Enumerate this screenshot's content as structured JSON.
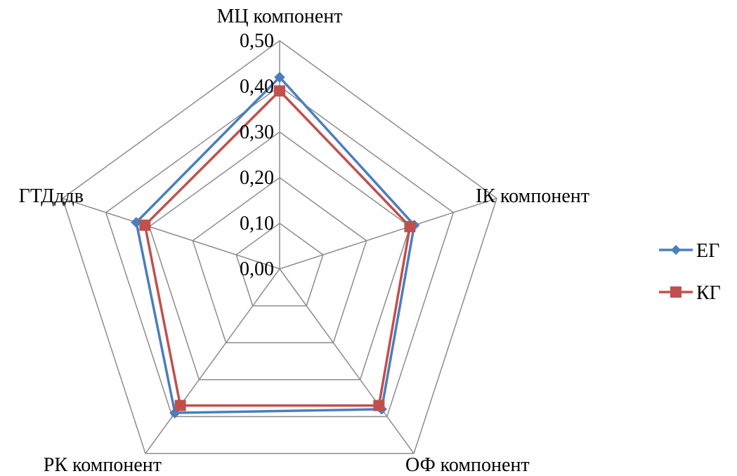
{
  "chart_data": {
    "type": "radar",
    "categories": [
      "МЦ компонент",
      "ІК компонент",
      "ОФ компонент",
      "РК компонент",
      "ГТДддв"
    ],
    "tick_labels": [
      "0,00",
      "0,10",
      "0,20",
      "0,30",
      "0,40",
      "0,50"
    ],
    "ticks": [
      0,
      0.1,
      0.2,
      0.3,
      0.4,
      0.5
    ],
    "rmax": 0.5,
    "grid": true,
    "legend_position": "right",
    "series": [
      {
        "name": "ЕГ",
        "values": [
          0.42,
          0.31,
          0.38,
          0.39,
          0.33
        ],
        "color": "#4a7ebf",
        "marker": "diamond"
      },
      {
        "name": "КГ",
        "values": [
          0.39,
          0.3,
          0.37,
          0.37,
          0.31
        ],
        "color": "#c0504d",
        "marker": "square"
      }
    ]
  }
}
